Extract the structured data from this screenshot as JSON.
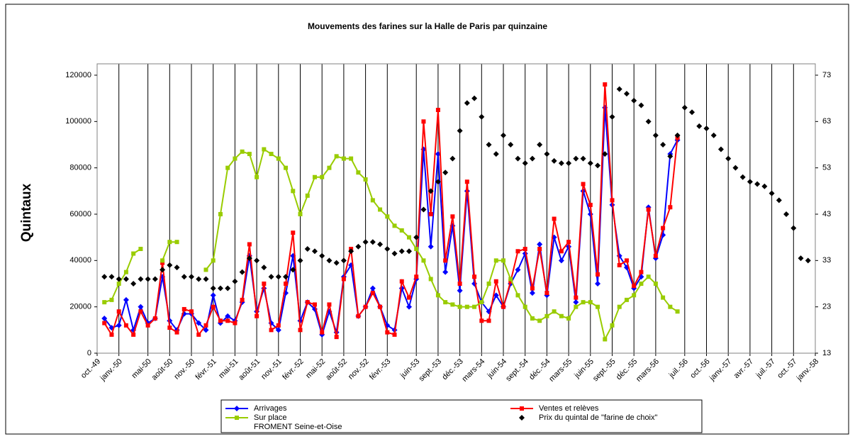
{
  "chart_data": {
    "type": "line",
    "title": "Mouvements des farines sur la Halle de Paris par quinzaine",
    "y_label": "Quintaux",
    "note": "FROMENT Seine-et-Oise",
    "x": [
      1,
      2,
      3,
      4,
      5,
      6,
      7,
      8,
      9,
      10,
      11,
      12,
      13,
      14,
      15,
      16,
      17,
      18,
      19,
      20,
      21,
      22,
      23,
      24,
      25,
      26,
      27,
      28,
      29,
      30,
      31,
      32,
      33,
      34,
      35,
      36,
      37,
      38,
      39,
      40,
      41,
      42,
      43,
      44,
      45,
      46,
      47,
      48,
      49,
      50,
      51,
      52,
      53,
      54,
      55,
      56,
      57,
      58,
      59,
      60,
      61,
      62,
      63,
      64,
      65,
      66,
      67,
      68,
      69,
      70,
      71,
      72,
      73,
      74,
      75,
      76,
      77,
      78,
      79,
      80,
      81,
      82,
      83,
      84,
      85,
      86,
      87,
      88,
      89,
      90,
      91,
      92,
      93,
      94,
      95,
      96,
      97,
      98
    ],
    "xlim": [
      0,
      99
    ],
    "xticks": [
      {
        "value": 0,
        "label": "oct.-49"
      },
      {
        "value": 3,
        "label": "janv.-50"
      },
      {
        "value": 7,
        "label": "mai-50"
      },
      {
        "value": 10,
        "label": "août-50"
      },
      {
        "value": 13,
        "label": "nov.-50"
      },
      {
        "value": 16,
        "label": "févr.-51"
      },
      {
        "value": 19,
        "label": "mai-51"
      },
      {
        "value": 22,
        "label": "août-51"
      },
      {
        "value": 25,
        "label": "nov.-51"
      },
      {
        "value": 28,
        "label": "févr.-52"
      },
      {
        "value": 31,
        "label": "mai-52"
      },
      {
        "value": 34,
        "label": "août-52"
      },
      {
        "value": 37,
        "label": "nov.-52"
      },
      {
        "value": 40,
        "label": "févr.-53"
      },
      {
        "value": 44,
        "label": "juin-53"
      },
      {
        "value": 47,
        "label": "sept.-53"
      },
      {
        "value": 50,
        "label": "déc.-53"
      },
      {
        "value": 53,
        "label": "mars-54"
      },
      {
        "value": 56,
        "label": "juin-54"
      },
      {
        "value": 59,
        "label": "sept.-54"
      },
      {
        "value": 62,
        "label": "déc.-54"
      },
      {
        "value": 65,
        "label": "mars-55"
      },
      {
        "value": 68,
        "label": "juin-55"
      },
      {
        "value": 71,
        "label": "sept.-55"
      },
      {
        "value": 74,
        "label": "déc.-55"
      },
      {
        "value": 77,
        "label": "mars-56"
      },
      {
        "value": 81,
        "label": "juil.-56"
      },
      {
        "value": 84,
        "label": "oct.-56"
      },
      {
        "value": 87,
        "label": "janv.-57"
      },
      {
        "value": 90,
        "label": "avr.-57"
      },
      {
        "value": 93,
        "label": "juil.-57"
      },
      {
        "value": 96,
        "label": "oct.-57"
      },
      {
        "value": 99,
        "label": "janv.-58"
      }
    ],
    "ylim": [
      0,
      120000
    ],
    "yticks": [
      0,
      20000,
      40000,
      60000,
      80000,
      100000,
      120000
    ],
    "y2lim": [
      13,
      73
    ],
    "y2ticks": [
      13,
      23,
      33,
      43,
      53,
      63,
      73
    ],
    "grid": "x",
    "series": [
      {
        "name": "Arrivages",
        "color": "#0000ff",
        "marker": "diamond",
        "line": true,
        "values": [
          15000,
          11000,
          12000,
          23000,
          10000,
          20000,
          13000,
          15000,
          33000,
          14000,
          10000,
          17000,
          17000,
          13000,
          10000,
          25000,
          13000,
          16000,
          14000,
          22000,
          42000,
          18000,
          28000,
          13000,
          10000,
          26000,
          42000,
          14000,
          22000,
          19000,
          8000,
          18000,
          9000,
          33000,
          38000,
          16000,
          20000,
          28000,
          20000,
          12000,
          10000,
          28000,
          20000,
          32000,
          88000,
          46000,
          86000,
          35000,
          55000,
          27000,
          70000,
          30000,
          22000,
          18000,
          25000,
          20000,
          30000,
          36000,
          43000,
          26000,
          47000,
          25000,
          50000,
          40000,
          46000,
          22000,
          70000,
          60000,
          30000,
          106000,
          64000,
          42000,
          37000,
          28000,
          33000,
          63000,
          41000,
          51000,
          86000,
          92000,
          null,
          null,
          null,
          null,
          null,
          null,
          null,
          null,
          null,
          null,
          null,
          null,
          null,
          null,
          null,
          null,
          null,
          null
        ]
      },
      {
        "name": "Ventes et relèves",
        "color": "#ff0000",
        "marker": "square",
        "line": true,
        "values": [
          13000,
          8000,
          18000,
          12000,
          8000,
          18000,
          12000,
          15000,
          39000,
          11000,
          9000,
          19000,
          18000,
          8000,
          12000,
          20000,
          14000,
          14000,
          13000,
          23000,
          47000,
          16000,
          30000,
          10000,
          12000,
          30000,
          52000,
          10000,
          22000,
          21000,
          9000,
          21000,
          7000,
          32000,
          45000,
          16000,
          20000,
          26000,
          20000,
          9000,
          8000,
          31000,
          24000,
          33000,
          100000,
          60000,
          105000,
          40000,
          59000,
          30000,
          74000,
          33000,
          14000,
          14000,
          31000,
          20000,
          31000,
          44000,
          45000,
          28000,
          45000,
          26000,
          58000,
          44000,
          48000,
          24000,
          73000,
          64000,
          34000,
          116000,
          66000,
          38000,
          40000,
          29000,
          35000,
          62000,
          42000,
          54000,
          63000,
          93000,
          null,
          null,
          null,
          null,
          null,
          null,
          null,
          null,
          null,
          null,
          null,
          null,
          null,
          null,
          null,
          null,
          null,
          null
        ]
      },
      {
        "name": "Sur place",
        "color": "#99cc00",
        "marker": "square",
        "line": true,
        "values": [
          22000,
          23000,
          30000,
          35000,
          43000,
          45000,
          null,
          null,
          40000,
          48000,
          48000,
          null,
          null,
          null,
          36000,
          40000,
          60000,
          80000,
          84000,
          87000,
          86000,
          76000,
          88000,
          86000,
          84000,
          80000,
          70000,
          60000,
          68000,
          76000,
          76000,
          80000,
          85000,
          84000,
          84000,
          78000,
          75000,
          66000,
          62000,
          59000,
          55000,
          53000,
          50000,
          45000,
          40000,
          32000,
          25000,
          22000,
          21000,
          20000,
          20000,
          20000,
          22000,
          30000,
          40000,
          40000,
          32000,
          25000,
          20000,
          15000,
          14000,
          16000,
          18000,
          16000,
          15000,
          20000,
          22000,
          22000,
          20000,
          6000,
          12000,
          20000,
          23000,
          25000,
          30000,
          33000,
          30000,
          24000,
          20000,
          18000,
          null,
          null,
          null,
          null,
          null,
          null,
          null,
          null,
          null,
          null,
          null,
          null,
          null,
          null,
          null,
          null,
          null,
          null
        ]
      },
      {
        "name": "Prix du quintal de \"farine de choix\"",
        "color": "#000000",
        "marker": "diamond",
        "line": false,
        "axis": "y2",
        "values": [
          29.5,
          29.5,
          29,
          29,
          28,
          29,
          29,
          29,
          31,
          32,
          31.5,
          29.5,
          29.5,
          29,
          29,
          27,
          27,
          27,
          28.5,
          30.5,
          33.5,
          33,
          31.5,
          29.5,
          29.5,
          29.5,
          31,
          33,
          35.5,
          35,
          34,
          33,
          32.5,
          33,
          35,
          36,
          37,
          37,
          36.5,
          35.5,
          34.5,
          35,
          35,
          38,
          44,
          48,
          50,
          52,
          55,
          61,
          67,
          68,
          64,
          58,
          56,
          60,
          58,
          55,
          54,
          55,
          58,
          56,
          54.5,
          54,
          54,
          55,
          55,
          54,
          53.5,
          56,
          64,
          70,
          69,
          67.5,
          66.5,
          63,
          60,
          58,
          55.5,
          60,
          66,
          65,
          62,
          61.5,
          60,
          57,
          55,
          53,
          51,
          50,
          49.5,
          49,
          47.5,
          46,
          43,
          40,
          33.5,
          33
        ]
      }
    ]
  }
}
